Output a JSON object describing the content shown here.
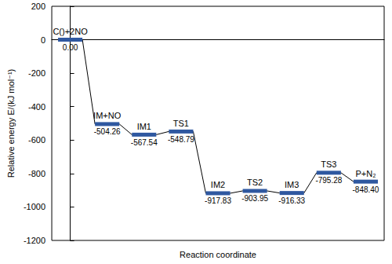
{
  "chart_data": {
    "type": "energy_profile",
    "categories": [
      "C()+2NO",
      "IM+NO",
      "IM1",
      "TS1",
      "IM2",
      "TS2",
      "IM3",
      "TS3",
      "P+N₂"
    ],
    "values": [
      0.0,
      -504.26,
      -567.54,
      -548.79,
      -917.83,
      -903.95,
      -916.33,
      -795.28,
      -848.4
    ],
    "value_labels": [
      "0.00",
      "-504.26",
      "-567.54",
      "-548.79",
      "-917.83",
      "-903.95",
      "-916.33",
      "-795.28",
      "-848.40"
    ],
    "xlabel": "Reaction coordinate",
    "ylabel": "Relative energy E/(kJ mol⁻¹)",
    "ylim": [
      -1200,
      200
    ],
    "yticks": [
      -1200,
      -1000,
      -800,
      -600,
      -400,
      -200,
      0,
      200
    ],
    "color": "#2f58a0",
    "grid": false,
    "data_labels": true,
    "tick_labels": "y"
  }
}
